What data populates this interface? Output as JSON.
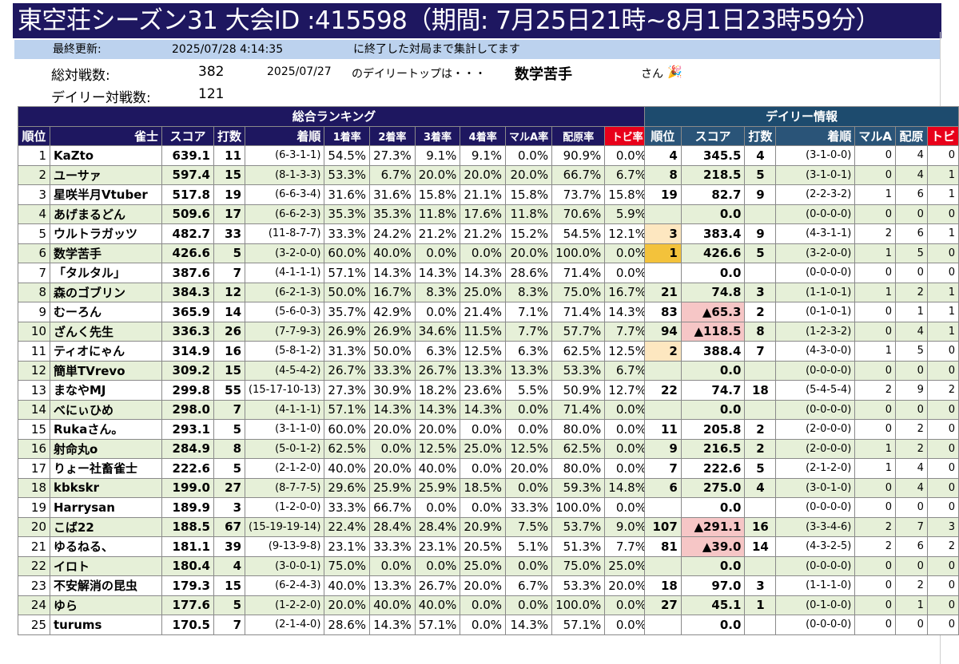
{
  "header": {
    "title": "東空荘シーズン31 大会ID :415598（期間: 7月25日21時~8月1日23時59分）"
  },
  "update": {
    "label": "最終更新:",
    "datetime": "2025/07/28 4:14:35",
    "note": "に終了した対局まで集計してます"
  },
  "summary": {
    "total_label": "総対戦数:",
    "total_value": "382",
    "daily_date": "2025/07/27",
    "daily_top_label": "のデイリートップは・・・",
    "daily_top_name": "数学苦手",
    "san": "さん",
    "daily_count_label": "デイリー対戦数:",
    "daily_count_value": "121"
  },
  "main_table": {
    "section": "総合ランキング",
    "headers": [
      "順位",
      "雀士",
      "スコア",
      "打数",
      "着順",
      "1着率",
      "2着率",
      "3着率",
      "4着率",
      "マルA率",
      "配原率",
      "トビ率"
    ],
    "rows": [
      [
        "1",
        "KaZto",
        "639.1",
        "11",
        "(6-3-1-1)",
        "54.5%",
        "27.3%",
        "9.1%",
        "9.1%",
        "0.0%",
        "90.9%",
        "0.0%"
      ],
      [
        "2",
        "ユーサァ",
        "597.4",
        "15",
        "(8-1-3-3)",
        "53.3%",
        "6.7%",
        "20.0%",
        "20.0%",
        "20.0%",
        "66.7%",
        "6.7%"
      ],
      [
        "3",
        "星咲半月Vtuber",
        "517.8",
        "19",
        "(6-6-3-4)",
        "31.6%",
        "31.6%",
        "15.8%",
        "21.1%",
        "15.8%",
        "73.7%",
        "15.8%"
      ],
      [
        "4",
        "あげまるどん",
        "509.6",
        "17",
        "(6-6-2-3)",
        "35.3%",
        "35.3%",
        "11.8%",
        "17.6%",
        "11.8%",
        "70.6%",
        "5.9%"
      ],
      [
        "5",
        "ウルトラガッツ",
        "482.7",
        "33",
        "(11-8-7-7)",
        "33.3%",
        "24.2%",
        "21.2%",
        "21.2%",
        "15.2%",
        "54.5%",
        "12.1%"
      ],
      [
        "6",
        "数学苦手",
        "426.6",
        "5",
        "(3-2-0-0)",
        "60.0%",
        "40.0%",
        "0.0%",
        "0.0%",
        "20.0%",
        "100.0%",
        "0.0%"
      ],
      [
        "7",
        "「タルタル」",
        "387.6",
        "7",
        "(4-1-1-1)",
        "57.1%",
        "14.3%",
        "14.3%",
        "14.3%",
        "28.6%",
        "71.4%",
        "0.0%"
      ],
      [
        "8",
        "森のゴブリン",
        "384.3",
        "12",
        "(6-2-1-3)",
        "50.0%",
        "16.7%",
        "8.3%",
        "25.0%",
        "8.3%",
        "75.0%",
        "16.7%"
      ],
      [
        "9",
        "むーろん",
        "365.9",
        "14",
        "(5-6-0-3)",
        "35.7%",
        "42.9%",
        "0.0%",
        "21.4%",
        "7.1%",
        "71.4%",
        "14.3%"
      ],
      [
        "10",
        "ざんく先生",
        "336.3",
        "26",
        "(7-7-9-3)",
        "26.9%",
        "26.9%",
        "34.6%",
        "11.5%",
        "7.7%",
        "57.7%",
        "7.7%"
      ],
      [
        "11",
        "ティオにゃん",
        "314.9",
        "16",
        "(5-8-1-2)",
        "31.3%",
        "50.0%",
        "6.3%",
        "12.5%",
        "6.3%",
        "62.5%",
        "12.5%"
      ],
      [
        "12",
        "簡単TVrevo",
        "309.2",
        "15",
        "(4-5-4-2)",
        "26.7%",
        "33.3%",
        "26.7%",
        "13.3%",
        "13.3%",
        "53.3%",
        "6.7%"
      ],
      [
        "13",
        "まなやMJ",
        "299.8",
        "55",
        "(15-17-10-13)",
        "27.3%",
        "30.9%",
        "18.2%",
        "23.6%",
        "5.5%",
        "50.9%",
        "12.7%"
      ],
      [
        "14",
        "べにぃひめ",
        "298.0",
        "7",
        "(4-1-1-1)",
        "57.1%",
        "14.3%",
        "14.3%",
        "14.3%",
        "0.0%",
        "71.4%",
        "0.0%"
      ],
      [
        "15",
        "Rukaさん。",
        "293.1",
        "5",
        "(3-1-1-0)",
        "60.0%",
        "20.0%",
        "20.0%",
        "0.0%",
        "0.0%",
        "80.0%",
        "0.0%"
      ],
      [
        "16",
        "射命丸o",
        "284.9",
        "8",
        "(5-0-1-2)",
        "62.5%",
        "0.0%",
        "12.5%",
        "25.0%",
        "12.5%",
        "62.5%",
        "0.0%"
      ],
      [
        "17",
        "りょー社畜雀士",
        "222.6",
        "5",
        "(2-1-2-0)",
        "40.0%",
        "20.0%",
        "40.0%",
        "0.0%",
        "20.0%",
        "80.0%",
        "0.0%"
      ],
      [
        "18",
        "kbkskr",
        "199.0",
        "27",
        "(8-7-7-5)",
        "29.6%",
        "25.9%",
        "25.9%",
        "18.5%",
        "0.0%",
        "59.3%",
        "14.8%"
      ],
      [
        "19",
        "Harrysan",
        "189.9",
        "3",
        "(1-2-0-0)",
        "33.3%",
        "66.7%",
        "0.0%",
        "0.0%",
        "33.3%",
        "100.0%",
        "0.0%"
      ],
      [
        "20",
        "こば22",
        "188.5",
        "67",
        "(15-19-19-14)",
        "22.4%",
        "28.4%",
        "28.4%",
        "20.9%",
        "7.5%",
        "53.7%",
        "9.0%"
      ],
      [
        "21",
        "ゆるねる、",
        "181.1",
        "39",
        "(9-13-9-8)",
        "23.1%",
        "33.3%",
        "23.1%",
        "20.5%",
        "5.1%",
        "51.3%",
        "7.7%"
      ],
      [
        "22",
        "イロト",
        "180.4",
        "4",
        "(3-0-0-1)",
        "75.0%",
        "0.0%",
        "0.0%",
        "25.0%",
        "0.0%",
        "75.0%",
        "25.0%"
      ],
      [
        "23",
        "不安解消の昆虫",
        "179.3",
        "15",
        "(6-2-4-3)",
        "40.0%",
        "13.3%",
        "26.7%",
        "20.0%",
        "6.7%",
        "53.3%",
        "20.0%"
      ],
      [
        "24",
        "ゆら",
        "177.6",
        "5",
        "(1-2-2-0)",
        "20.0%",
        "40.0%",
        "40.0%",
        "0.0%",
        "0.0%",
        "100.0%",
        "0.0%"
      ],
      [
        "25",
        "turums",
        "170.5",
        "7",
        "(2-1-4-0)",
        "28.6%",
        "14.3%",
        "57.1%",
        "0.0%",
        "14.3%",
        "57.1%",
        "0.0%"
      ]
    ]
  },
  "daily_table": {
    "section": "デイリー情報",
    "headers": [
      "順位",
      "スコア",
      "打数",
      "着順",
      "マルA",
      "配原",
      "トビ"
    ],
    "rows": [
      [
        "4",
        "345.5",
        "4",
        "(3-1-0-0)",
        "0",
        "4",
        "0"
      ],
      [
        "8",
        "218.5",
        "5",
        "(3-1-0-1)",
        "0",
        "4",
        "1"
      ],
      [
        "19",
        "82.7",
        "9",
        "(2-2-3-2)",
        "1",
        "6",
        "1"
      ],
      [
        "",
        "0.0",
        "",
        "(0-0-0-0)",
        "0",
        "0",
        "0"
      ],
      [
        "3",
        "383.4",
        "9",
        "(4-3-1-1)",
        "2",
        "6",
        "1"
      ],
      [
        "1",
        "426.6",
        "5",
        "(3-2-0-0)",
        "1",
        "5",
        "0"
      ],
      [
        "",
        "0.0",
        "",
        "(0-0-0-0)",
        "0",
        "0",
        "0"
      ],
      [
        "21",
        "74.8",
        "3",
        "(1-1-0-1)",
        "1",
        "2",
        "1"
      ],
      [
        "83",
        "▲65.3",
        "2",
        "(0-1-0-1)",
        "0",
        "1",
        "1"
      ],
      [
        "94",
        "▲118.5",
        "8",
        "(1-2-3-2)",
        "0",
        "4",
        "1"
      ],
      [
        "2",
        "388.4",
        "7",
        "(4-3-0-0)",
        "1",
        "5",
        "0"
      ],
      [
        "",
        "0.0",
        "",
        "(0-0-0-0)",
        "0",
        "0",
        "0"
      ],
      [
        "22",
        "74.7",
        "18",
        "(5-4-5-4)",
        "2",
        "9",
        "2"
      ],
      [
        "",
        "0.0",
        "",
        "(0-0-0-0)",
        "0",
        "0",
        "0"
      ],
      [
        "11",
        "205.8",
        "2",
        "(2-0-0-0)",
        "0",
        "2",
        "0"
      ],
      [
        "9",
        "216.5",
        "2",
        "(2-0-0-0)",
        "1",
        "2",
        "0"
      ],
      [
        "7",
        "222.6",
        "5",
        "(2-1-2-0)",
        "1",
        "4",
        "0"
      ],
      [
        "6",
        "275.0",
        "4",
        "(3-0-1-0)",
        "0",
        "4",
        "0"
      ],
      [
        "",
        "0.0",
        "",
        "(0-0-0-0)",
        "0",
        "0",
        "0"
      ],
      [
        "107",
        "▲291.1",
        "16",
        "(3-3-4-6)",
        "2",
        "7",
        "3"
      ],
      [
        "81",
        "▲39.0",
        "14",
        "(4-3-2-5)",
        "2",
        "6",
        "2"
      ],
      [
        "",
        "0.0",
        "",
        "(0-0-0-0)",
        "0",
        "0",
        "0"
      ],
      [
        "18",
        "97.0",
        "3",
        "(1-1-1-0)",
        "0",
        "2",
        "0"
      ],
      [
        "27",
        "45.1",
        "1",
        "(0-1-0-0)",
        "0",
        "1",
        "0"
      ],
      [
        "",
        "0.0",
        "",
        "(0-0-0-0)",
        "0",
        "0",
        "0"
      ]
    ],
    "highlights": {
      "gold": "#f3c23b",
      "peach": "#fde7c0",
      "pink": "#f6c6c6"
    }
  }
}
